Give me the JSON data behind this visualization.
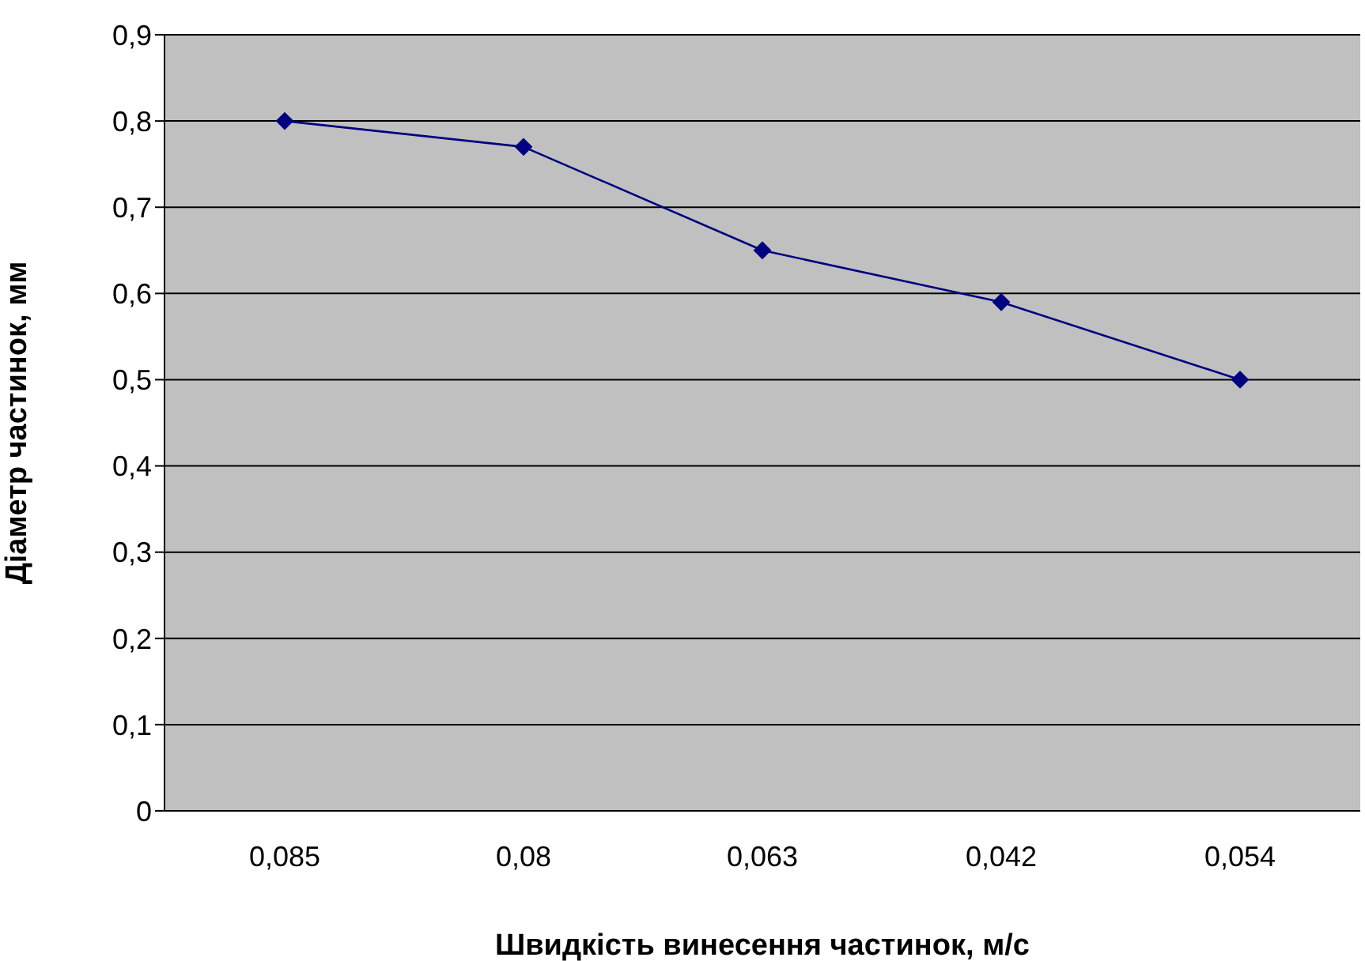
{
  "chart_data": {
    "type": "line",
    "xlabel": "Швидкість винесення частинок, м/с",
    "ylabel": "Діаметр частинок, мм",
    "categories": [
      "0,085",
      "0,08",
      "0,063",
      "0,042",
      "0,054"
    ],
    "series": [
      {
        "color": "#000080",
        "values": [
          0.8,
          0.77,
          0.65,
          0.59,
          0.5
        ]
      }
    ],
    "ylim": [
      0,
      0.9
    ],
    "yticks": [
      0,
      {
        "value": 0.1,
        "label": "0,1"
      },
      {
        "value": 0.2,
        "label": "0,2"
      },
      {
        "value": 0.3,
        "label": "0,3"
      },
      {
        "value": 0.4,
        "label": "0,4"
      },
      {
        "value": 0.5,
        "label": "0,5"
      },
      {
        "value": 0.6,
        "label": "0,6"
      },
      {
        "value": 0.7,
        "label": "0,7"
      },
      {
        "value": 0.8,
        "label": "0,8"
      },
      {
        "value": 0.9,
        "label": "0,9"
      }
    ],
    "grid": "y",
    "marker": "diamond",
    "line_style": "solid"
  }
}
